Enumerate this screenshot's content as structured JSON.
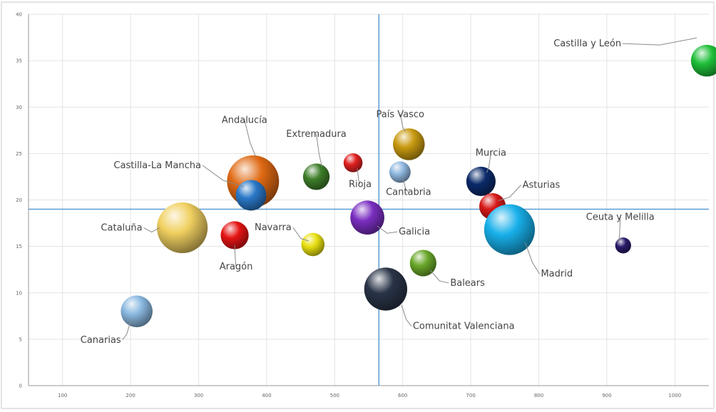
{
  "chart_data": {
    "type": "scatter",
    "xlim": [
      50,
      1050
    ],
    "ylim": [
      0,
      40
    ],
    "x_ticks": [
      100,
      200,
      300,
      400,
      500,
      600,
      700,
      800,
      900,
      1000
    ],
    "x_tick_labels": [
      "100",
      "200",
      "300",
      "400",
      "500",
      "600",
      "700",
      "800",
      "900",
      "1000"
    ],
    "y_ticks": [
      0,
      5,
      10,
      15,
      20,
      25,
      30,
      35,
      40
    ],
    "y_tick_labels": [
      "0",
      "5",
      "10",
      "15",
      "20",
      "25",
      "30",
      "35",
      "40"
    ],
    "grid": true,
    "reference_lines": {
      "x": 565,
      "y": 19
    },
    "points": [
      {
        "name": "Castilla y León",
        "x": 1047,
        "y": 35,
        "size": 10,
        "color": "#1fbf3a"
      },
      {
        "name": "Andalucía",
        "x": 380,
        "y": 22,
        "size": 35,
        "color": "#e06a14"
      },
      {
        "name": "Extremadura",
        "x": 473,
        "y": 22.5,
        "size": 6,
        "color": "#3f7f2a"
      },
      {
        "name": "País Vasco",
        "x": 609,
        "y": 26,
        "size": 10,
        "color": "#c89a10"
      },
      {
        "name": "Castilla-La Mancha",
        "x": 377,
        "y": 20.5,
        "size": 9,
        "color": "#2a78c8"
      },
      {
        "name": "Rioja",
        "x": 527,
        "y": 24,
        "size": 2,
        "color": "#e02020"
      },
      {
        "name": "Cantabria",
        "x": 596,
        "y": 23,
        "size": 3,
        "color": "#8fb8e0"
      },
      {
        "name": "Murcia",
        "x": 715,
        "y": 22,
        "size": 8,
        "color": "#0b2a6a"
      },
      {
        "name": "Asturias",
        "x": 732,
        "y": 19.3,
        "size": 6,
        "color": "#d81818"
      },
      {
        "name": "Cataluña",
        "x": 276,
        "y": 17,
        "size": 33,
        "color": "#f0d060"
      },
      {
        "name": "Aragón",
        "x": 353,
        "y": 16.2,
        "size": 7,
        "color": "#e51414"
      },
      {
        "name": "Navarra",
        "x": 468,
        "y": 15.2,
        "size": 4,
        "color": "#e8e010"
      },
      {
        "name": "Galicia",
        "x": 548,
        "y": 18.1,
        "size": 12,
        "color": "#7a2ec0"
      },
      {
        "name": "Madrid",
        "x": 757,
        "y": 16.8,
        "size": 33,
        "color": "#18b0ea"
      },
      {
        "name": "Ceuta y Melilla",
        "x": 924,
        "y": 15.1,
        "size": 1,
        "color": "#2a1a6a"
      },
      {
        "name": "Balears",
        "x": 630,
        "y": 13.2,
        "size": 6,
        "color": "#6aa82a"
      },
      {
        "name": "Comunitat Valenciana",
        "x": 575,
        "y": 10.4,
        "size": 22,
        "color": "#2a3448"
      },
      {
        "name": "Canarias",
        "x": 209,
        "y": 8,
        "size": 10,
        "color": "#8ab8e0"
      }
    ]
  }
}
